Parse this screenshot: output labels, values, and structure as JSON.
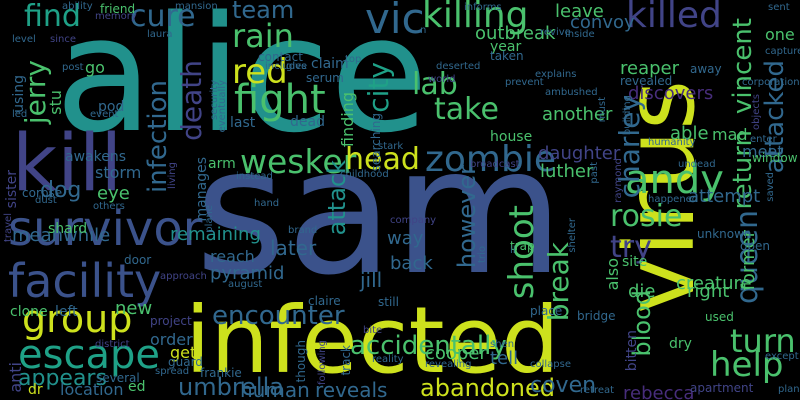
{
  "palette": {
    "yellow": "#cde11d",
    "lime": "#8fd744",
    "green": "#4ac16d",
    "teal": "#21918c",
    "cyan": "#1fa187",
    "blue": "#3b528b",
    "slate": "#31688e",
    "indigo": "#414487",
    "purple": "#472d7b",
    "dark": "#440154"
  },
  "words": [
    {
      "text": "alice",
      "color": "teal"
    },
    {
      "text": "sam",
      "color": "blue"
    },
    {
      "text": "virus",
      "color": "yellow"
    },
    {
      "text": "infected",
      "color": "yellow"
    },
    {
      "text": "kill",
      "color": "indigo"
    },
    {
      "text": "survivor",
      "color": "blue"
    },
    {
      "text": "facility",
      "color": "blue"
    },
    {
      "text": "group",
      "color": "yellow"
    },
    {
      "text": "escape",
      "color": "cyan"
    },
    {
      "text": "zombie",
      "color": "slate"
    },
    {
      "text": "wesker",
      "color": "green"
    },
    {
      "text": "head",
      "color": "yellow"
    },
    {
      "text": "killing",
      "color": "green"
    },
    {
      "text": "killed",
      "color": "indigo"
    },
    {
      "text": "vic",
      "color": "slate"
    },
    {
      "text": "andy",
      "color": "green"
    },
    {
      "text": "fight",
      "color": "green"
    },
    {
      "text": "red",
      "color": "yellow"
    },
    {
      "text": "rain",
      "color": "green"
    },
    {
      "text": "team",
      "color": "slate"
    },
    {
      "text": "find",
      "color": "cyan"
    },
    {
      "text": "cure",
      "color": "slate"
    },
    {
      "text": "death",
      "color": "indigo"
    },
    {
      "text": "city",
      "color": "cyan"
    },
    {
      "text": "lab",
      "color": "green"
    },
    {
      "text": "take",
      "color": "green"
    },
    {
      "text": "infection",
      "color": "slate"
    },
    {
      "text": "jerry",
      "color": "green"
    },
    {
      "text": "charley",
      "color": "slate"
    },
    {
      "text": "vincent",
      "color": "green"
    },
    {
      "text": "attacked",
      "color": "slate"
    },
    {
      "text": "return",
      "color": "green"
    },
    {
      "text": "queen",
      "color": "slate"
    },
    {
      "text": "help",
      "color": "green"
    },
    {
      "text": "turn",
      "color": "green"
    },
    {
      "text": "rosie",
      "color": "green"
    },
    {
      "text": "shoot",
      "color": "green"
    },
    {
      "text": "break",
      "color": "green"
    },
    {
      "text": "however",
      "color": "slate"
    },
    {
      "text": "attack",
      "color": "teal"
    },
    {
      "text": "try",
      "color": "indigo"
    },
    {
      "text": "encounter",
      "color": "slate"
    },
    {
      "text": "accidentally",
      "color": "green"
    },
    {
      "text": "umbrella",
      "color": "slate"
    },
    {
      "text": "abandoned",
      "color": "yellow"
    },
    {
      "text": "blood",
      "color": "green"
    },
    {
      "text": "coven",
      "color": "slate"
    },
    {
      "text": "reveals",
      "color": "slate"
    },
    {
      "text": "human",
      "color": "slate"
    },
    {
      "text": "appears",
      "color": "teal"
    },
    {
      "text": "location",
      "color": "slate"
    },
    {
      "text": "new",
      "color": "green"
    },
    {
      "text": "pyramid",
      "color": "slate"
    },
    {
      "text": "jill",
      "color": "slate"
    },
    {
      "text": "later",
      "color": "slate"
    },
    {
      "text": "meanwhile",
      "color": "slate"
    },
    {
      "text": "remaining",
      "color": "teal"
    },
    {
      "text": "dog",
      "color": "slate"
    },
    {
      "text": "eye",
      "color": "green"
    },
    {
      "text": "storm",
      "color": "slate"
    },
    {
      "text": "luther",
      "color": "green"
    },
    {
      "text": "daughter",
      "color": "indigo"
    },
    {
      "text": "another",
      "color": "green"
    },
    {
      "text": "outbreak",
      "color": "green"
    },
    {
      "text": "reaper",
      "color": "green"
    },
    {
      "text": "convoy",
      "color": "slate"
    },
    {
      "text": "leave",
      "color": "green"
    },
    {
      "text": "discovers",
      "color": "purple"
    },
    {
      "text": "able",
      "color": "green"
    },
    {
      "text": "mad",
      "color": "green"
    },
    {
      "text": "meet",
      "color": "slate"
    },
    {
      "text": "one",
      "color": "green"
    },
    {
      "text": "attempt",
      "color": "slate"
    },
    {
      "text": "creature",
      "color": "green"
    },
    {
      "text": "right",
      "color": "green"
    },
    {
      "text": "die",
      "color": "green"
    },
    {
      "text": "also",
      "color": "green"
    },
    {
      "text": "former",
      "color": "green"
    },
    {
      "text": "rebecca",
      "color": "purple"
    },
    {
      "text": "cooper",
      "color": "green"
    },
    {
      "text": "tell",
      "color": "slate"
    },
    {
      "text": "get",
      "color": "yellow"
    },
    {
      "text": "order",
      "color": "slate"
    },
    {
      "text": "back",
      "color": "slate"
    },
    {
      "text": "way",
      "color": "slate"
    },
    {
      "text": "reach",
      "color": "slate"
    },
    {
      "text": "finding",
      "color": "green"
    },
    {
      "text": "stu",
      "color": "green"
    },
    {
      "text": "go",
      "color": "green"
    },
    {
      "text": "using",
      "color": "slate"
    },
    {
      "text": "clone",
      "color": "green"
    },
    {
      "text": "left",
      "color": "slate"
    },
    {
      "text": "anti",
      "color": "indigo"
    },
    {
      "text": "ed",
      "color": "green"
    },
    {
      "text": "dr",
      "color": "yellow"
    },
    {
      "text": "shard",
      "color": "green"
    },
    {
      "text": "arm",
      "color": "green"
    },
    {
      "text": "year",
      "color": "green"
    },
    {
      "text": "manages",
      "color": "slate"
    },
    {
      "text": "sister",
      "color": "indigo"
    },
    {
      "text": "corpse",
      "color": "slate"
    },
    {
      "text": "awakens",
      "color": "slate"
    },
    {
      "text": "window",
      "color": "green"
    },
    {
      "text": "house",
      "color": "green"
    },
    {
      "text": "apartment",
      "color": "indigo"
    },
    {
      "text": "bitten",
      "color": "indigo"
    },
    {
      "text": "claire",
      "color": "slate"
    },
    {
      "text": "dead",
      "color": "slate"
    },
    {
      "text": "claim",
      "color": "slate"
    },
    {
      "text": "serum",
      "color": "slate"
    },
    {
      "text": "last",
      "color": "slate"
    },
    {
      "text": "pod",
      "color": "slate"
    },
    {
      "text": "dry",
      "color": "green"
    },
    {
      "text": "site",
      "color": "green"
    },
    {
      "text": "open",
      "color": "slate"
    },
    {
      "text": "unknown",
      "color": "slate"
    },
    {
      "text": "contact",
      "color": "slate"
    },
    {
      "text": "searching",
      "color": "slate"
    },
    {
      "text": "taken",
      "color": "slate"
    },
    {
      "text": "revealed",
      "color": "slate"
    },
    {
      "text": "away",
      "color": "slate"
    },
    {
      "text": "trap",
      "color": "green"
    },
    {
      "text": "used",
      "color": "green"
    },
    {
      "text": "bridge",
      "color": "slate"
    },
    {
      "text": "place",
      "color": "slate"
    },
    {
      "text": "still",
      "color": "slate"
    },
    {
      "text": "door",
      "color": "slate"
    },
    {
      "text": "guard",
      "color": "slate"
    },
    {
      "text": "project",
      "color": "indigo"
    },
    {
      "text": "district",
      "color": "indigo"
    },
    {
      "text": "several",
      "color": "slate"
    },
    {
      "text": "frankie",
      "color": "slate"
    },
    {
      "text": "reality",
      "color": "slate"
    },
    {
      "text": "collapse",
      "color": "slate"
    },
    {
      "text": "retreat",
      "color": "slate"
    },
    {
      "text": "plan",
      "color": "slate"
    },
    {
      "text": "except",
      "color": "slate"
    },
    {
      "text": "shen",
      "color": "slate"
    },
    {
      "text": "revealing",
      "color": "slate"
    },
    {
      "text": "spread",
      "color": "slate"
    },
    {
      "text": "track",
      "color": "slate"
    },
    {
      "text": "though",
      "color": "slate"
    },
    {
      "text": "following",
      "color": "indigo"
    },
    {
      "text": "others",
      "color": "slate"
    },
    {
      "text": "travel",
      "color": "indigo"
    },
    {
      "text": "dust",
      "color": "slate"
    },
    {
      "text": "hand",
      "color": "slate"
    },
    {
      "text": "instead",
      "color": "slate"
    },
    {
      "text": "childhood",
      "color": "slate"
    },
    {
      "text": "stark",
      "color": "slate"
    },
    {
      "text": "brand",
      "color": "slate"
    },
    {
      "text": "company",
      "color": "indigo"
    },
    {
      "text": "undead",
      "color": "slate"
    },
    {
      "text": "happened",
      "color": "slate"
    },
    {
      "text": "humanity",
      "color": "slate"
    },
    {
      "text": "enter",
      "color": "slate"
    },
    {
      "text": "corporation",
      "color": "slate"
    },
    {
      "text": "explains",
      "color": "slate"
    },
    {
      "text": "ambushed",
      "color": "slate"
    },
    {
      "text": "deserted",
      "color": "slate"
    },
    {
      "text": "world",
      "color": "indigo"
    },
    {
      "text": "prevent",
      "color": "slate"
    },
    {
      "text": "inside",
      "color": "slate"
    },
    {
      "text": "informs",
      "color": "slate"
    },
    {
      "text": "revive",
      "color": "slate"
    },
    {
      "text": "sent",
      "color": "slate"
    },
    {
      "text": "friend",
      "color": "green"
    },
    {
      "text": "ability",
      "color": "slate"
    },
    {
      "text": "memory",
      "color": "indigo"
    },
    {
      "text": "level",
      "color": "slate"
    },
    {
      "text": "since",
      "color": "indigo"
    },
    {
      "text": "laura",
      "color": "slate"
    },
    {
      "text": "mansion",
      "color": "slate"
    },
    {
      "text": "post",
      "color": "slate"
    },
    {
      "text": "event",
      "color": "slate"
    },
    {
      "text": "top",
      "color": "slate"
    },
    {
      "text": "includes",
      "color": "slate"
    },
    {
      "text": "give",
      "color": "slate"
    },
    {
      "text": "security",
      "color": "slate"
    },
    {
      "text": "eventually",
      "color": "slate"
    },
    {
      "text": "capture",
      "color": "slate"
    },
    {
      "text": "objects",
      "color": "indigo"
    },
    {
      "text": "must",
      "color": "slate"
    },
    {
      "text": "building",
      "color": "slate"
    },
    {
      "text": "raymond",
      "color": "indigo"
    },
    {
      "text": "past",
      "color": "slate"
    },
    {
      "text": "broadcast",
      "color": "indigo"
    },
    {
      "text": "living",
      "color": "indigo"
    },
    {
      "text": "plane",
      "color": "slate"
    },
    {
      "text": "approach",
      "color": "indigo"
    },
    {
      "text": "august",
      "color": "slate"
    },
    {
      "text": "bite",
      "color": "indigo"
    },
    {
      "text": "trio",
      "color": "slate"
    },
    {
      "text": "shelter",
      "color": "slate"
    },
    {
      "text": "ii",
      "color": "slate"
    },
    {
      "text": "led",
      "color": "slate"
    },
    {
      "text": "saved",
      "color": "slate"
    },
    {
      "text": "n",
      "color": "slate"
    }
  ]
}
